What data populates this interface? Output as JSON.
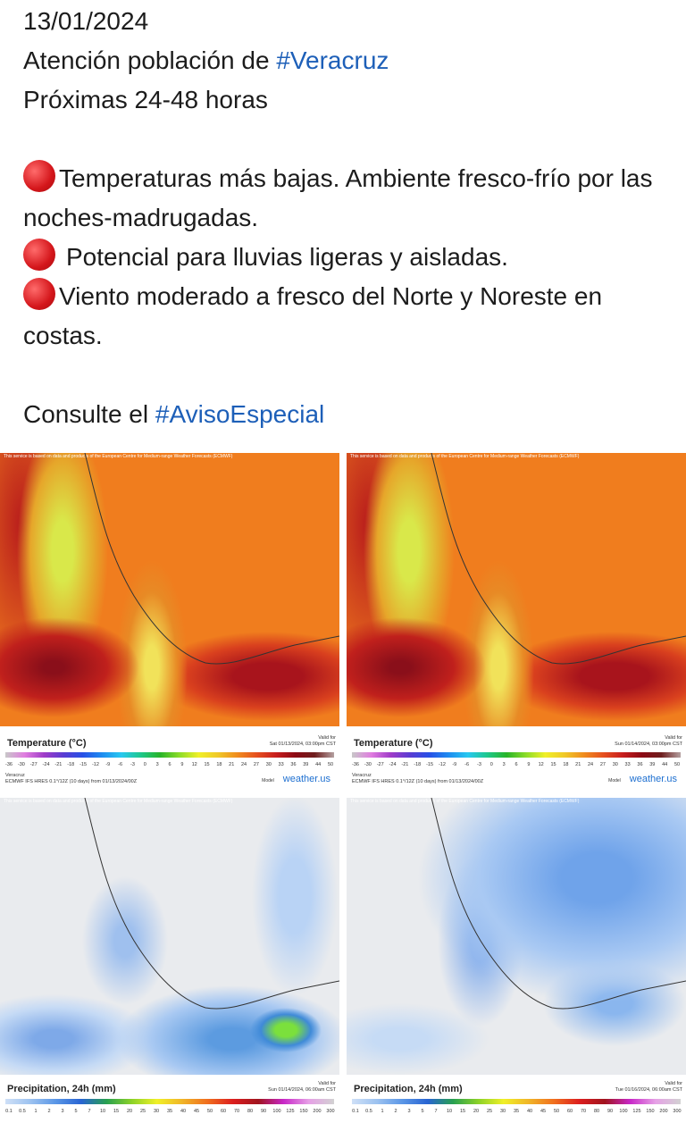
{
  "post": {
    "date": "13/01/2024",
    "line1": "Atención población de ",
    "hashtag1": "#Veracruz",
    "line2": "Próximas 24-48 horas",
    "bullets": [
      "Temperaturas más bajas. Ambiente fresco-frío por las noches-madrugadas.",
      "Potencial para lluvias ligeras y aisladas.",
      "Viento moderado a fresco del Norte y Noreste en costas."
    ],
    "consult": "Consulte el ",
    "hashtag2": "#AvisoEspecial"
  },
  "panels": [
    {
      "attribution": "This service is based on data and products of the European Centre for Medium-range Weather Forecasts (ECMWF)",
      "title": "Temperature (°C)",
      "valid_label": "Valid for",
      "valid_time": "Sat 01/13/2024, 03:00pm CST",
      "scale": [
        -36,
        -30,
        -27,
        -24,
        -21,
        -18,
        -15,
        -12,
        -9,
        -6,
        -3,
        0,
        3,
        6,
        9,
        12,
        15,
        18,
        21,
        24,
        27,
        30,
        33,
        36,
        39,
        44,
        50
      ],
      "region": "Veracruz",
      "model_info": "ECMWF IFS HRES 0.1°/12Z (10 days) from 01/13/2024/00Z",
      "model_label": "Model",
      "brand": "weather.us"
    },
    {
      "attribution": "This service is based on data and products of the European Centre for Medium-range Weather Forecasts (ECMWF)",
      "title": "Temperature (°C)",
      "valid_label": "Valid for",
      "valid_time": "Sun 01/14/2024, 03:00pm CST",
      "scale": [
        -36,
        -30,
        -27,
        -24,
        -21,
        -18,
        -15,
        -12,
        -9,
        -6,
        -3,
        0,
        3,
        6,
        9,
        12,
        15,
        18,
        21,
        24,
        27,
        30,
        33,
        36,
        39,
        44,
        50
      ],
      "region": "Veracruz",
      "model_info": "ECMWF IFS HRES 0.1°/12Z (10 days) from 01/13/2024/00Z",
      "model_label": "Model",
      "brand": "weather.us"
    },
    {
      "attribution": "This service is based on data and products of the European Centre for Medium-range Weather Forecasts (ECMWF)",
      "title": "Precipitation, 24h (mm)",
      "valid_label": "Valid for",
      "valid_time": "Sun 01/14/2024, 06:00am CST",
      "scale": [
        0.1,
        0.5,
        1,
        2,
        3,
        5,
        7,
        10,
        15,
        20,
        25,
        30,
        35,
        40,
        45,
        50,
        60,
        70,
        80,
        90,
        100,
        125,
        150,
        200,
        300
      ]
    },
    {
      "attribution": "This service is based on data and products of the European Centre for Medium-range Weather Forecasts (ECMWF)",
      "title": "Precipitation, 24h (mm)",
      "valid_label": "Valid for",
      "valid_time": "Tue 01/16/2024, 06:00am CST",
      "scale": [
        0.1,
        0.5,
        1,
        2,
        3,
        5,
        7,
        10,
        15,
        20,
        25,
        30,
        35,
        40,
        45,
        50,
        60,
        70,
        80,
        90,
        100,
        125,
        150,
        200,
        300
      ]
    }
  ]
}
